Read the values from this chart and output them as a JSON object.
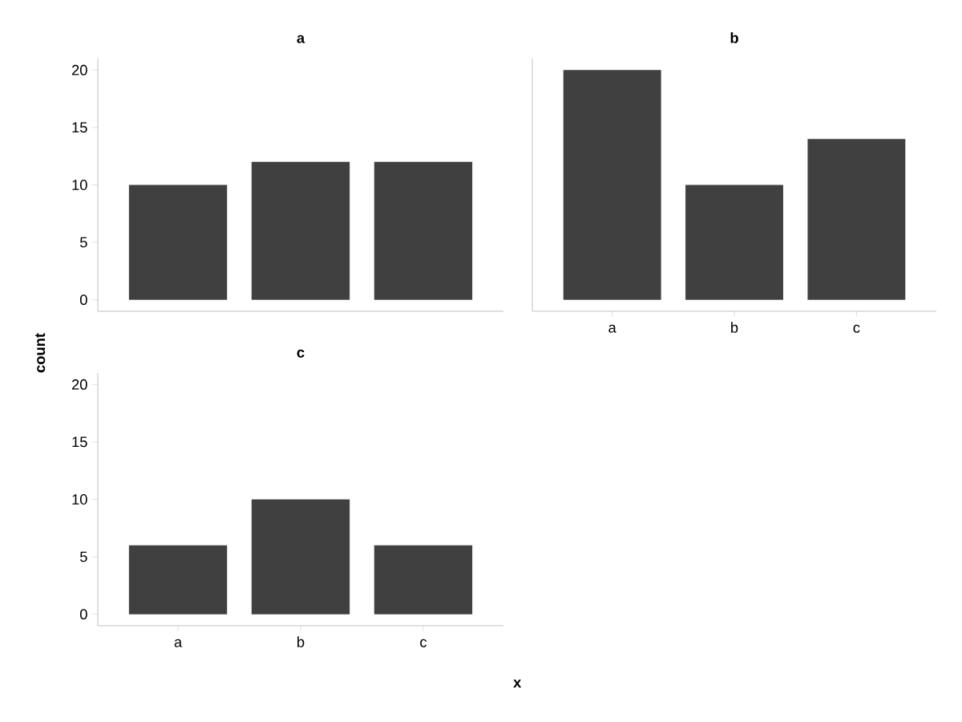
{
  "chart_data": [
    {
      "type": "bar",
      "title": "a",
      "ylabel": "count",
      "categories": [
        null,
        null,
        null
      ],
      "values": [
        10,
        12,
        12
      ],
      "color": "#404040",
      "ylim": [
        -1,
        21
      ],
      "yticks": [
        0,
        5,
        10,
        15,
        20
      ],
      "tick_labels": "y"
    },
    {
      "type": "bar",
      "title": "b",
      "categories": [
        "a",
        "b",
        "c"
      ],
      "values": [
        20,
        10,
        14
      ],
      "color": "#404040",
      "ylim": [
        -1,
        21
      ],
      "tick_labels": "x"
    },
    {
      "type": "bar",
      "title": "c",
      "xlabel": "x",
      "categories": [
        "a",
        "b",
        "c"
      ],
      "values": [
        6,
        10,
        6
      ],
      "color": "#404040",
      "ylim": [
        -1,
        21
      ],
      "yticks": [
        0,
        5,
        10,
        15,
        20
      ]
    }
  ]
}
